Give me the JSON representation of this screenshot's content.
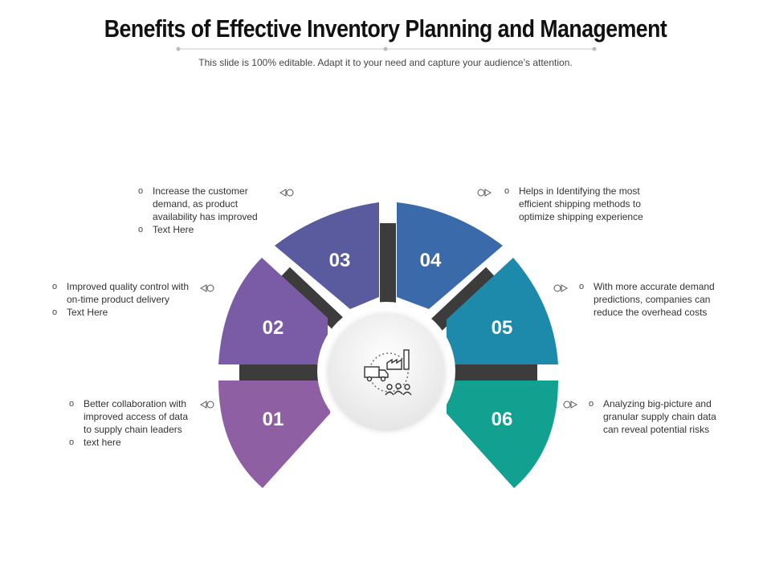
{
  "header": {
    "title": "Benefits of Effective Inventory Planning and Management",
    "subtitle": "This slide is 100% editable. Adapt it to your need and capture your audience’s attention."
  },
  "segments": [
    {
      "number": "01",
      "color": "#8f5fa3",
      "items": [
        "Better collaboration with improved access of data to supply chain leaders",
        "text here"
      ]
    },
    {
      "number": "02",
      "color": "#7a5ca6",
      "items": [
        "Improved quality control with on-time product delivery",
        "Text Here"
      ]
    },
    {
      "number": "03",
      "color": "#5a5a9e",
      "items": [
        "Increase  the customer demand, as product availability has improved",
        "Text Here"
      ]
    },
    {
      "number": "04",
      "color": "#3a6aaa",
      "items": [
        "Helps in Identifying the most efficient shipping methods to optimize shipping experience"
      ]
    },
    {
      "number": "05",
      "color": "#1e8aab",
      "items": [
        "With more accurate demand predictions, companies can reduce the overhead costs"
      ]
    },
    {
      "number": "06",
      "color": "#12a090",
      "items": [
        "Analyzing big-picture and granular supply chain data can reveal  potential risks"
      ]
    }
  ],
  "center": {
    "icon": "supply-chain-icon"
  },
  "icons": {
    "left_marker": "left-arrow-marker-icon",
    "right_marker": "right-arrow-marker-icon"
  },
  "colors": {
    "bar": "#3c3c3c",
    "hub": "#f2f2f2"
  }
}
